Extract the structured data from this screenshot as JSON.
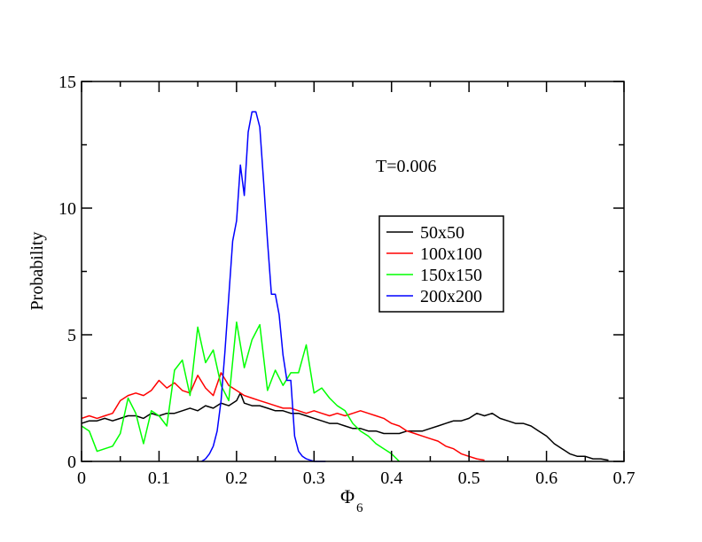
{
  "chart_data": {
    "type": "line",
    "title": "",
    "xlabel": "Φ",
    "xlabel_subscript": "6",
    "ylabel": "Probability",
    "xlim": [
      0,
      0.7
    ],
    "ylim": [
      0,
      15
    ],
    "xticks": [
      "0",
      "0.1",
      "0.2",
      "0.3",
      "0.4",
      "0.5",
      "0.6",
      "0.7"
    ],
    "yticks": [
      "0",
      "5",
      "10",
      "15"
    ],
    "grid": false,
    "legend_position": "center-right",
    "annotation": "T=0.006",
    "series": [
      {
        "name": "50x50",
        "color": "#000000",
        "x": [
          0.0,
          0.01,
          0.02,
          0.03,
          0.04,
          0.05,
          0.06,
          0.07,
          0.08,
          0.09,
          0.1,
          0.11,
          0.12,
          0.13,
          0.14,
          0.15,
          0.16,
          0.17,
          0.18,
          0.19,
          0.2,
          0.205,
          0.21,
          0.22,
          0.23,
          0.24,
          0.25,
          0.26,
          0.27,
          0.28,
          0.29,
          0.3,
          0.31,
          0.32,
          0.33,
          0.34,
          0.35,
          0.36,
          0.37,
          0.38,
          0.39,
          0.4,
          0.41,
          0.42,
          0.43,
          0.44,
          0.45,
          0.46,
          0.47,
          0.48,
          0.49,
          0.5,
          0.51,
          0.52,
          0.53,
          0.54,
          0.55,
          0.56,
          0.57,
          0.58,
          0.59,
          0.6,
          0.61,
          0.62,
          0.63,
          0.64,
          0.65,
          0.66,
          0.67,
          0.68
        ],
        "y": [
          1.5,
          1.6,
          1.6,
          1.7,
          1.6,
          1.7,
          1.8,
          1.8,
          1.7,
          1.9,
          1.8,
          1.9,
          1.9,
          2.0,
          2.1,
          2.0,
          2.2,
          2.1,
          2.3,
          2.2,
          2.4,
          2.7,
          2.3,
          2.2,
          2.2,
          2.1,
          2.0,
          2.0,
          1.9,
          1.9,
          1.8,
          1.7,
          1.6,
          1.5,
          1.5,
          1.4,
          1.3,
          1.3,
          1.2,
          1.2,
          1.1,
          1.1,
          1.1,
          1.2,
          1.2,
          1.2,
          1.3,
          1.4,
          1.5,
          1.6,
          1.6,
          1.7,
          1.9,
          1.8,
          1.9,
          1.7,
          1.6,
          1.5,
          1.5,
          1.4,
          1.2,
          1.0,
          0.7,
          0.5,
          0.3,
          0.2,
          0.2,
          0.1,
          0.1,
          0.05
        ]
      },
      {
        "name": "100x100",
        "color": "#ff0000",
        "x": [
          0.0,
          0.01,
          0.02,
          0.03,
          0.04,
          0.05,
          0.06,
          0.07,
          0.08,
          0.09,
          0.1,
          0.11,
          0.12,
          0.13,
          0.14,
          0.15,
          0.16,
          0.17,
          0.18,
          0.19,
          0.2,
          0.21,
          0.22,
          0.23,
          0.24,
          0.25,
          0.26,
          0.27,
          0.28,
          0.29,
          0.3,
          0.31,
          0.32,
          0.33,
          0.34,
          0.35,
          0.36,
          0.37,
          0.38,
          0.39,
          0.4,
          0.41,
          0.42,
          0.43,
          0.44,
          0.45,
          0.46,
          0.47,
          0.48,
          0.49,
          0.5,
          0.51,
          0.52
        ],
        "y": [
          1.7,
          1.8,
          1.7,
          1.8,
          1.9,
          2.4,
          2.6,
          2.7,
          2.6,
          2.8,
          3.2,
          2.9,
          3.1,
          2.8,
          2.7,
          3.4,
          2.9,
          2.6,
          3.5,
          3.0,
          2.8,
          2.6,
          2.5,
          2.4,
          2.3,
          2.2,
          2.1,
          2.1,
          2.0,
          1.9,
          2.0,
          1.9,
          1.8,
          1.9,
          1.8,
          1.9,
          2.0,
          1.9,
          1.8,
          1.7,
          1.5,
          1.4,
          1.2,
          1.1,
          1.0,
          0.9,
          0.8,
          0.6,
          0.5,
          0.3,
          0.2,
          0.1,
          0.05
        ]
      },
      {
        "name": "150x150",
        "color": "#00ff00",
        "x": [
          0.0,
          0.01,
          0.02,
          0.03,
          0.04,
          0.05,
          0.06,
          0.07,
          0.08,
          0.09,
          0.1,
          0.11,
          0.12,
          0.13,
          0.14,
          0.15,
          0.16,
          0.17,
          0.18,
          0.19,
          0.2,
          0.21,
          0.22,
          0.23,
          0.24,
          0.25,
          0.26,
          0.27,
          0.28,
          0.29,
          0.3,
          0.31,
          0.32,
          0.33,
          0.34,
          0.35,
          0.36,
          0.37,
          0.38,
          0.39,
          0.4,
          0.41
        ],
        "y": [
          1.4,
          1.2,
          0.4,
          0.5,
          0.6,
          1.1,
          2.5,
          1.9,
          0.7,
          2.0,
          1.8,
          1.4,
          3.6,
          4.0,
          2.6,
          5.3,
          3.9,
          4.4,
          3.0,
          2.4,
          5.5,
          3.7,
          4.8,
          5.4,
          2.8,
          3.6,
          3.0,
          3.5,
          3.5,
          4.6,
          2.7,
          2.9,
          2.5,
          2.2,
          2.0,
          1.5,
          1.2,
          1.0,
          0.7,
          0.5,
          0.3,
          0.0
        ]
      },
      {
        "name": "200x200",
        "color": "#0000ff",
        "x": [
          0.155,
          0.16,
          0.165,
          0.17,
          0.175,
          0.18,
          0.185,
          0.19,
          0.195,
          0.2,
          0.205,
          0.21,
          0.215,
          0.22,
          0.225,
          0.23,
          0.235,
          0.24,
          0.245,
          0.25,
          0.255,
          0.26,
          0.265,
          0.27,
          0.275,
          0.28,
          0.285,
          0.29,
          0.295,
          0.3,
          0.305,
          0.31,
          0.315
        ],
        "y": [
          0.0,
          0.1,
          0.3,
          0.6,
          1.2,
          2.4,
          4.3,
          6.5,
          8.7,
          9.5,
          11.7,
          10.5,
          13.0,
          13.8,
          13.8,
          13.2,
          11.0,
          8.7,
          6.6,
          6.6,
          5.8,
          4.2,
          3.2,
          3.2,
          1.0,
          0.4,
          0.2,
          0.1,
          0.05,
          0.0,
          0.0,
          0.0,
          0.0
        ]
      }
    ]
  }
}
